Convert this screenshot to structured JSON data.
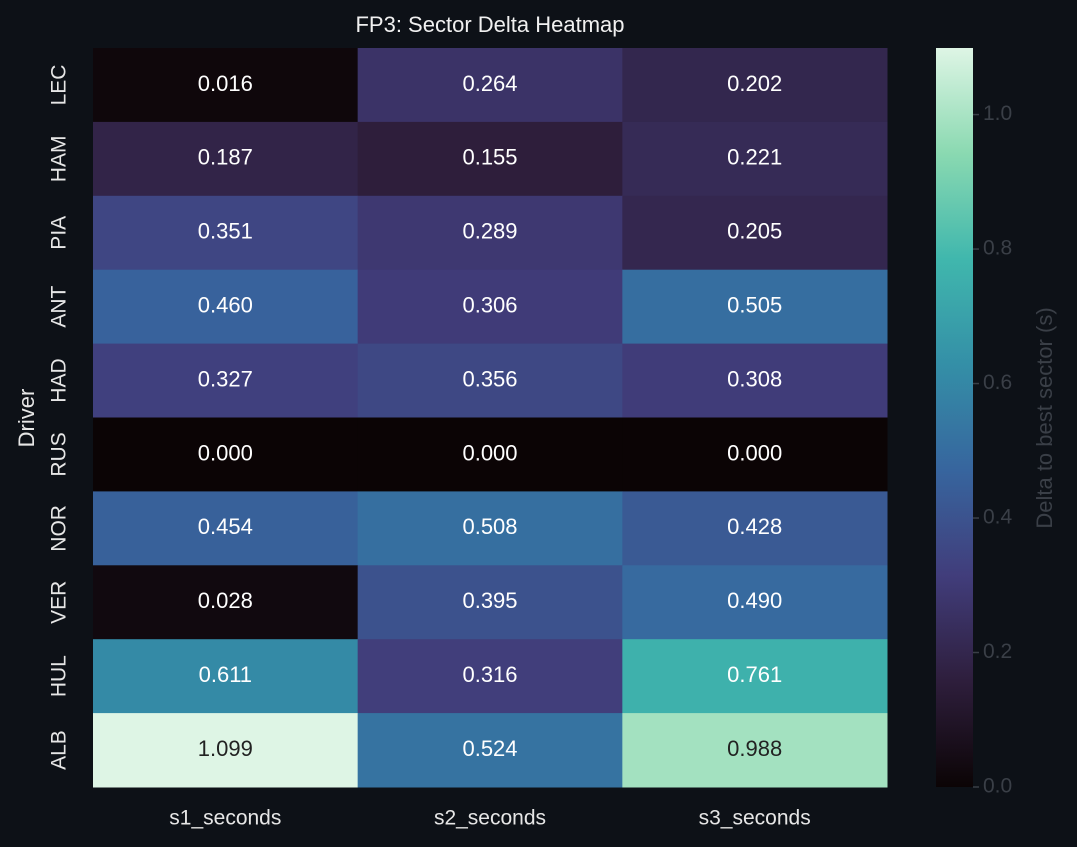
{
  "chart_data": {
    "type": "heatmap",
    "title": "FP3: Sector Delta Heatmap",
    "x_categories": [
      "s1_seconds",
      "s2_seconds",
      "s3_seconds"
    ],
    "y_label": "Driver",
    "y_categories": [
      "LEC",
      "HAM",
      "PIA",
      "ANT",
      "HAD",
      "RUS",
      "NOR",
      "VER",
      "HUL",
      "ALB"
    ],
    "values": [
      [
        0.016,
        0.264,
        0.202
      ],
      [
        0.187,
        0.155,
        0.221
      ],
      [
        0.351,
        0.289,
        0.205
      ],
      [
        0.46,
        0.306,
        0.505
      ],
      [
        0.327,
        0.356,
        0.308
      ],
      [
        0,
        0,
        0
      ],
      [
        0.454,
        0.508,
        0.428
      ],
      [
        0.028,
        0.395,
        0.49
      ],
      [
        0.611,
        0.316,
        0.761
      ],
      [
        1.099,
        0.524,
        0.988
      ]
    ],
    "value_labels": [
      [
        "0.016",
        "0.264",
        "0.202"
      ],
      [
        "0.187",
        "0.155",
        "0.221"
      ],
      [
        "0.351",
        "0.289",
        "0.205"
      ],
      [
        "0.460",
        "0.306",
        "0.505"
      ],
      [
        "0.327",
        "0.356",
        "0.308"
      ],
      [
        "0.000",
        "0.000",
        "0.000"
      ],
      [
        "0.454",
        "0.508",
        "0.428"
      ],
      [
        "0.028",
        "0.395",
        "0.490"
      ],
      [
        "0.611",
        "0.316",
        "0.761"
      ],
      [
        "1.099",
        "0.524",
        "0.988"
      ]
    ],
    "colorbar_label": "Delta to best sector (s)",
    "clim": [
      0,
      1.099
    ],
    "cticks": [
      {
        "value": 0,
        "label": "0.0"
      },
      0.2,
      0.4,
      0.6,
      0.8,
      {
        "value": 1,
        "label": "1.0"
      }
    ],
    "colormap": [
      "#0b0405",
      "#2e1e3c",
      "#413d7b",
      "#37659e",
      "#348fa7",
      "#40b7ad",
      "#8ad9b1",
      "#def5e5"
    ]
  }
}
